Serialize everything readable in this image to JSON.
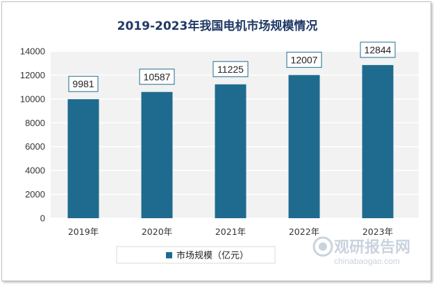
{
  "colors": {
    "bar": "#1f6b8f",
    "title": "#1f3864",
    "plot_bg": "#f2f2f2",
    "grid": "#ffffff",
    "label_border": "#1f6b8f"
  },
  "chart_data": {
    "type": "bar",
    "title": "2019-2023年我国电机市场规模情况",
    "categories": [
      "2019年",
      "2020年",
      "2021年",
      "2022年",
      "2023年"
    ],
    "series": [
      {
        "name": "市场规模（亿元）",
        "values": [
          9981,
          10587,
          11225,
          12007,
          12844
        ]
      }
    ],
    "data_labels": [
      "9981",
      "10587",
      "11225",
      "12007",
      "12844"
    ],
    "ylim": [
      0,
      14000
    ],
    "yticks": [
      "0",
      "2000",
      "4000",
      "6000",
      "8000",
      "10000",
      "12000",
      "14000"
    ],
    "grid": true,
    "legend_position": "bottom-left"
  },
  "watermark": {
    "main": "观研报告网",
    "sub": "chinabaogao.com"
  }
}
